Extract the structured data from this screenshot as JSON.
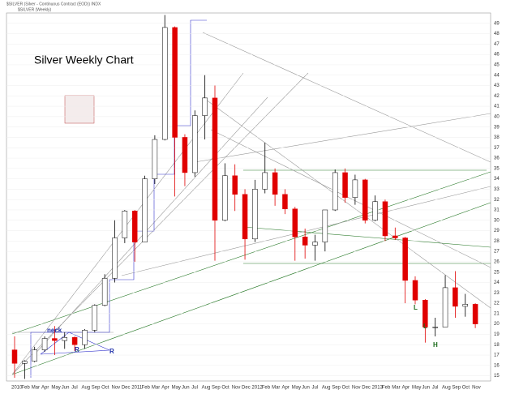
{
  "chart_data": {
    "type": "candlestick",
    "header": "$SILVER (Silver - Continuous Contract (EOD)) INDX",
    "subheader": "$SILVER (Weekly)",
    "title": "Silver Weekly Chart",
    "categories": [
      "2010",
      "Feb",
      "Mar",
      "Apr",
      "May",
      "Jun",
      "Jul",
      "Aug",
      "Sep",
      "Oct",
      "Nov",
      "Dec",
      "2011",
      "Feb",
      "Mar",
      "Apr",
      "May",
      "Jun",
      "Jul",
      "Aug",
      "Sep",
      "Oct",
      "Nov",
      "Dec",
      "2012",
      "Feb",
      "Mar",
      "Apr",
      "May",
      "Jun",
      "Jul",
      "Aug",
      "Sep",
      "Oct",
      "Nov",
      "Dec",
      "2013",
      "Feb",
      "Mar",
      "Apr",
      "May",
      "Jun",
      "Jul",
      "Aug",
      "Sep",
      "Oct",
      "Nov"
    ],
    "open": [
      17.5,
      16.2,
      16.4,
      17.5,
      18.6,
      18.4,
      18.7,
      18.0,
      19.4,
      21.8,
      24.4,
      28.3,
      30.9,
      27.9,
      34.0,
      37.8,
      48.6,
      38.0,
      34.6,
      40.1,
      41.8,
      30.0,
      34.3,
      32.5,
      28.2,
      33.0,
      34.6,
      32.5,
      31.1,
      28.4,
      27.6,
      27.9,
      31.0,
      34.6,
      32.2,
      33.9,
      30.0,
      31.8,
      28.5,
      28.3,
      24.2,
      22.3,
      19.7,
      19.7,
      23.5,
      21.7,
      21.9
    ],
    "high": [
      18.8,
      16.5,
      17.8,
      18.8,
      19.8,
      19.2,
      18.8,
      19.5,
      21.9,
      24.8,
      30.0,
      31.0,
      31.0,
      34.3,
      38.2,
      49.8,
      48.7,
      38.3,
      40.6,
      44.0,
      43.0,
      35.5,
      35.4,
      33.0,
      33.9,
      37.5,
      35.0,
      33.0,
      31.3,
      29.2,
      28.6,
      31.0,
      34.9,
      35.0,
      34.4,
      34.0,
      32.4,
      32.0,
      29.3,
      28.4,
      24.6,
      22.4,
      20.6,
      24.7,
      25.1,
      22.9,
      22.0
    ],
    "low": [
      14.8,
      14.7,
      16.3,
      17.3,
      17.0,
      17.6,
      17.4,
      17.6,
      19.2,
      21.7,
      24.0,
      27.8,
      26.0,
      27.9,
      33.5,
      37.7,
      32.3,
      33.3,
      34.2,
      37.8,
      26.1,
      29.9,
      30.9,
      26.2,
      27.9,
      32.6,
      31.4,
      30.6,
      26.1,
      26.3,
      26.1,
      27.0,
      30.9,
      31.7,
      31.5,
      29.7,
      29.9,
      28.0,
      28.1,
      22.0,
      21.9,
      18.2,
      18.8,
      19.7,
      20.6,
      20.7,
      19.6
    ],
    "close": [
      16.2,
      16.4,
      17.5,
      18.6,
      18.4,
      18.7,
      18.0,
      19.4,
      21.8,
      24.4,
      28.3,
      30.9,
      27.9,
      34.0,
      37.8,
      48.6,
      38.0,
      34.6,
      40.1,
      41.8,
      30.0,
      34.3,
      32.5,
      28.2,
      33.0,
      34.6,
      32.5,
      31.1,
      28.4,
      27.6,
      27.9,
      31.0,
      34.6,
      32.2,
      33.9,
      30.0,
      31.8,
      28.5,
      28.3,
      24.2,
      22.3,
      19.7,
      19.7,
      23.5,
      21.7,
      21.9,
      20.0
    ],
    "up_color": "#ffffff",
    "down_color": "#e00000",
    "ylim": [
      14.5,
      50
    ],
    "yticks": [
      15,
      16,
      17,
      18,
      19,
      20,
      21,
      22,
      23,
      24,
      25,
      26,
      27,
      28,
      29,
      30,
      31,
      32,
      33,
      34,
      35,
      36,
      37,
      38,
      39,
      40,
      41,
      42,
      43,
      44,
      45,
      46,
      47,
      48,
      49
    ],
    "grid": true,
    "annotations": [
      "neck",
      "R",
      "R",
      "L",
      "L",
      "H"
    ]
  }
}
